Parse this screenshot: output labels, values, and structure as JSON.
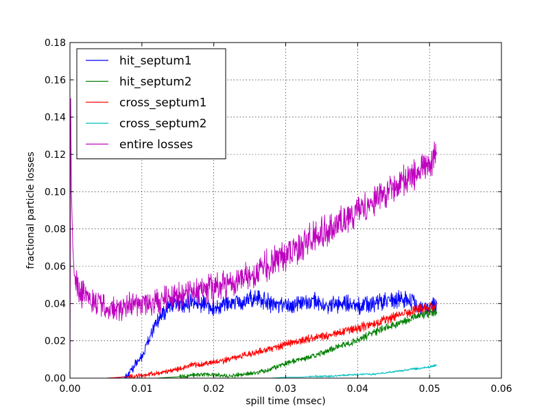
{
  "chart_data": {
    "type": "line",
    "title": "",
    "xlabel": "spill time (msec)",
    "ylabel": "fractional particle losses",
    "xlim": [
      0.0,
      0.06
    ],
    "ylim": [
      0.0,
      0.18
    ],
    "xticks": [
      "0.00",
      "0.01",
      "0.02",
      "0.03",
      "0.04",
      "0.05",
      "0.06"
    ],
    "yticks": [
      "0.00",
      "0.02",
      "0.04",
      "0.06",
      "0.08",
      "0.10",
      "0.12",
      "0.14",
      "0.16",
      "0.18"
    ],
    "grid": true,
    "legend_position": "top-left",
    "series": [
      {
        "name": "hit_septum1",
        "color": "#0000ff",
        "x": [
          0.0,
          0.0002,
          0.0005,
          0.001,
          0.002,
          0.004,
          0.006,
          0.008,
          0.01,
          0.012,
          0.014,
          0.016,
          0.018,
          0.02,
          0.022,
          0.024,
          0.026,
          0.028,
          0.03,
          0.032,
          0.034,
          0.036,
          0.038,
          0.04,
          0.042,
          0.044,
          0.046,
          0.048,
          0.05,
          0.051
        ],
        "y": [
          0.0,
          0.0,
          0.0,
          0.0,
          0.0,
          0.0,
          0.0,
          0.001,
          0.012,
          0.03,
          0.04,
          0.039,
          0.041,
          0.037,
          0.04,
          0.041,
          0.043,
          0.04,
          0.039,
          0.04,
          0.041,
          0.039,
          0.04,
          0.038,
          0.04,
          0.041,
          0.043,
          0.04,
          0.038,
          0.039
        ]
      },
      {
        "name": "hit_septum2",
        "color": "#008000",
        "x": [
          0.0,
          0.012,
          0.014,
          0.016,
          0.018,
          0.02,
          0.022,
          0.024,
          0.026,
          0.028,
          0.03,
          0.032,
          0.034,
          0.036,
          0.038,
          0.04,
          0.042,
          0.044,
          0.046,
          0.048,
          0.05,
          0.051
        ],
        "y": [
          0.0,
          0.0,
          0.0005,
          0.001,
          0.002,
          0.002,
          0.001,
          0.002,
          0.003,
          0.005,
          0.008,
          0.01,
          0.012,
          0.015,
          0.018,
          0.02,
          0.024,
          0.027,
          0.03,
          0.033,
          0.035,
          0.036
        ]
      },
      {
        "name": "cross_septum1",
        "color": "#ff0000",
        "x": [
          0.0,
          0.005,
          0.007,
          0.009,
          0.011,
          0.013,
          0.015,
          0.017,
          0.019,
          0.021,
          0.023,
          0.025,
          0.027,
          0.029,
          0.031,
          0.033,
          0.035,
          0.037,
          0.039,
          0.041,
          0.043,
          0.045,
          0.047,
          0.049,
          0.051
        ],
        "y": [
          0.0,
          0.0,
          0.0005,
          0.001,
          0.002,
          0.003,
          0.005,
          0.007,
          0.008,
          0.009,
          0.011,
          0.013,
          0.015,
          0.017,
          0.019,
          0.021,
          0.022,
          0.024,
          0.026,
          0.028,
          0.03,
          0.033,
          0.035,
          0.037,
          0.038
        ]
      },
      {
        "name": "cross_septum2",
        "color": "#00bfbf",
        "x": [
          0.0,
          0.028,
          0.03,
          0.032,
          0.034,
          0.036,
          0.038,
          0.04,
          0.042,
          0.044,
          0.046,
          0.048,
          0.05,
          0.051
        ],
        "y": [
          0.0,
          0.0,
          0.0005,
          0.0005,
          0.001,
          0.001,
          0.0015,
          0.002,
          0.002,
          0.003,
          0.004,
          0.005,
          0.006,
          0.007
        ]
      },
      {
        "name": "entire losses",
        "color": "#bf00bf",
        "x": [
          0.0,
          0.0001,
          0.0002,
          0.0004,
          0.0006,
          0.001,
          0.002,
          0.003,
          0.004,
          0.005,
          0.006,
          0.008,
          0.01,
          0.012,
          0.014,
          0.016,
          0.018,
          0.02,
          0.022,
          0.024,
          0.026,
          0.028,
          0.03,
          0.032,
          0.034,
          0.036,
          0.038,
          0.04,
          0.042,
          0.044,
          0.046,
          0.048,
          0.05,
          0.051
        ],
        "y": [
          0.0,
          0.15,
          0.1,
          0.07,
          0.055,
          0.048,
          0.044,
          0.041,
          0.04,
          0.038,
          0.037,
          0.039,
          0.04,
          0.041,
          0.043,
          0.045,
          0.047,
          0.048,
          0.05,
          0.053,
          0.057,
          0.062,
          0.066,
          0.071,
          0.076,
          0.08,
          0.085,
          0.09,
          0.094,
          0.1,
          0.105,
          0.11,
          0.115,
          0.12
        ]
      }
    ]
  }
}
